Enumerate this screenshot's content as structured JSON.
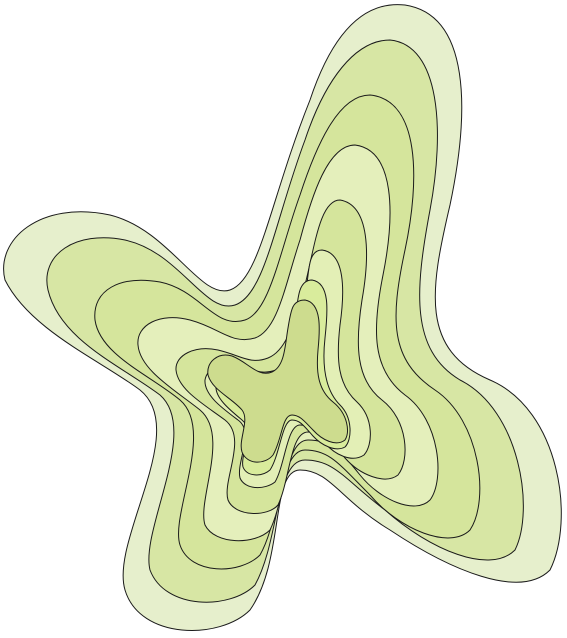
{
  "figure": {
    "description_visible_text": "",
    "background": "#ffffff",
    "outline_color": "#1a1a1a",
    "bands": [
      {
        "name": "band-1-outer",
        "fill": "#e6efcc"
      },
      {
        "name": "band-2",
        "fill": "#d7e6a4"
      },
      {
        "name": "band-3",
        "fill": "#d5e59c"
      },
      {
        "name": "band-4",
        "fill": "#e4efbb"
      },
      {
        "name": "band-5",
        "fill": "#d5e59c"
      },
      {
        "name": "band-6",
        "fill": "#e3efb6"
      },
      {
        "name": "band-7",
        "fill": "#d9ec9c"
      },
      {
        "name": "band-8-core",
        "fill": "#cddc8e"
      }
    ]
  }
}
